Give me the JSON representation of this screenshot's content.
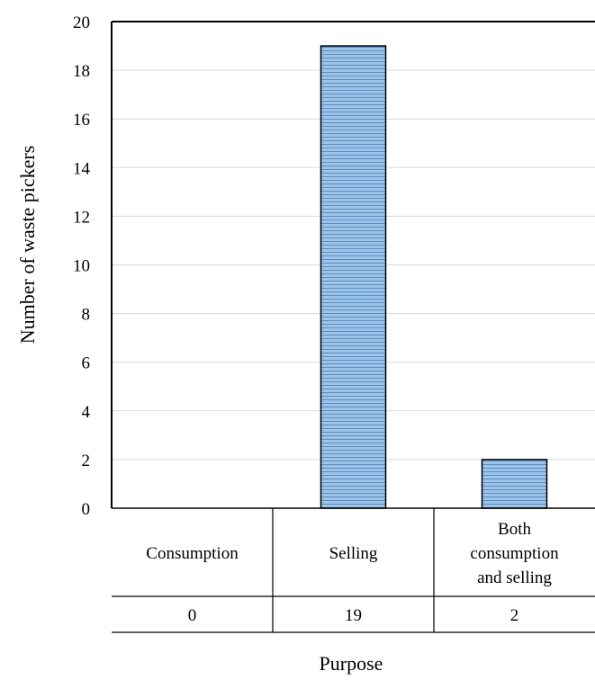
{
  "chart_data": {
    "type": "bar",
    "categories": [
      "Consumption",
      "Selling",
      "Both consumption and selling"
    ],
    "category_label_lines": [
      [
        "Consumption"
      ],
      [
        "Selling"
      ],
      [
        "Both",
        "consumption",
        "and selling"
      ]
    ],
    "values": [
      0,
      19,
      2
    ],
    "value_labels": [
      "0",
      "19",
      "2"
    ],
    "xlabel": "Purpose",
    "ylabel": "Number of waste pickers",
    "ylim": [
      0,
      20
    ],
    "yticks": [
      "0",
      "2",
      "4",
      "6",
      "8",
      "10",
      "12",
      "14",
      "16",
      "18",
      "20"
    ],
    "grid": true,
    "data_table": true,
    "colors": {
      "bar_fill": "#9dc3e6",
      "bar_stripe": "#5b8fc7",
      "bar_stroke": "#000000",
      "grid": "#d9d9d9",
      "axis": "#000000"
    }
  }
}
